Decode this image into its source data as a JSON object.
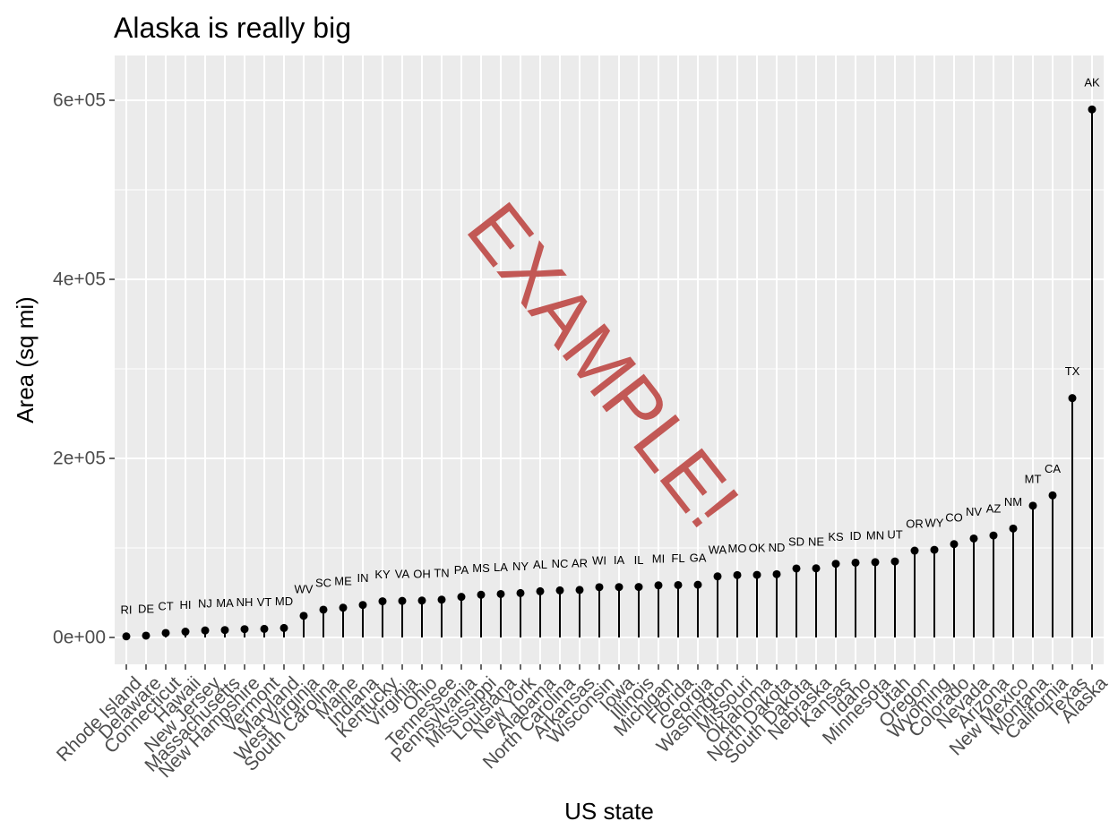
{
  "chart_data": {
    "type": "scatter",
    "style": "lollipop",
    "title": "Alaska is really big",
    "xlabel": "US state",
    "ylabel": "Area (sq mi)",
    "ylim": [
      -30000,
      650000
    ],
    "yticks": [
      0,
      200000,
      400000,
      600000
    ],
    "ytick_labels": [
      "0e+00",
      "2e+05",
      "4e+05",
      "6e+05"
    ],
    "grid": true,
    "watermark": "EXAMPLE!",
    "colors": {
      "panel": "#ebebeb",
      "grid": "#ffffff",
      "points": "#000000",
      "watermark": "#c0504d",
      "ticks": "#4d4d4d"
    },
    "categories": [
      "Rhode Island",
      "Delaware",
      "Connecticut",
      "Hawaii",
      "New Jersey",
      "Massachusetts",
      "New Hampshire",
      "Vermont",
      "Maryland",
      "West Virginia",
      "South Carolina",
      "Maine",
      "Indiana",
      "Kentucky",
      "Virginia",
      "Ohio",
      "Tennessee",
      "Pennsylvania",
      "Mississippi",
      "Louisiana",
      "New York",
      "Alabama",
      "North Carolina",
      "Arkansas",
      "Wisconsin",
      "Iowa",
      "Illinois",
      "Michigan",
      "Florida",
      "Georgia",
      "Washington",
      "Missouri",
      "Oklahoma",
      "North Dakota",
      "South Dakota",
      "Nebraska",
      "Kansas",
      "Idaho",
      "Minnesota",
      "Utah",
      "Oregon",
      "Wyoming",
      "Colorado",
      "Nevada",
      "Arizona",
      "New Mexico",
      "Montana",
      "California",
      "Texas",
      "Alaska"
    ],
    "abbreviations": [
      "RI",
      "DE",
      "CT",
      "HI",
      "NJ",
      "MA",
      "NH",
      "VT",
      "MD",
      "WV",
      "SC",
      "ME",
      "IN",
      "KY",
      "VA",
      "OH",
      "TN",
      "PA",
      "MS",
      "LA",
      "NY",
      "AL",
      "NC",
      "AR",
      "WI",
      "IA",
      "IL",
      "MI",
      "FL",
      "GA",
      "WA",
      "MO",
      "OK",
      "ND",
      "SD",
      "NE",
      "KS",
      "ID",
      "MN",
      "UT",
      "OR",
      "WY",
      "CO",
      "NV",
      "AZ",
      "NM",
      "MT",
      "CA",
      "TX",
      "AK"
    ],
    "values": [
      1214,
      2057,
      5009,
      6450,
      7836,
      8257,
      9304,
      9609,
      10577,
      24181,
      31055,
      33215,
      36291,
      40395,
      40815,
      41222,
      42244,
      45333,
      47716,
      48523,
      49576,
      51609,
      52586,
      53104,
      56154,
      56290,
      56400,
      58216,
      58560,
      58876,
      68192,
      69686,
      69919,
      70665,
      77047,
      77227,
      82264,
      83557,
      84068,
      84916,
      96981,
      97914,
      104247,
      110540,
      113909,
      121666,
      147138,
      158693,
      267339,
      589757
    ]
  }
}
